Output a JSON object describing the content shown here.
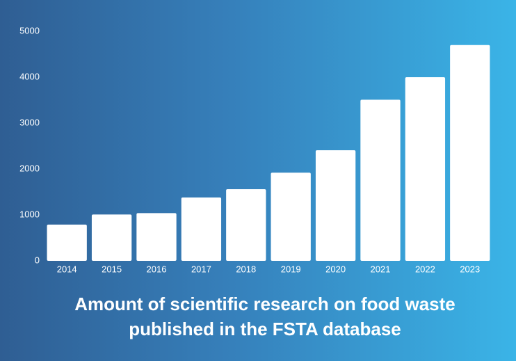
{
  "chart_data": {
    "type": "bar",
    "title": "Amount of scientific research on food waste published in the FSTA database",
    "categories": [
      "2014",
      "2015",
      "2016",
      "2017",
      "2018",
      "2019",
      "2020",
      "2021",
      "2022",
      "2023"
    ],
    "values": [
      790,
      1010,
      1040,
      1380,
      1560,
      1920,
      2410,
      3510,
      4000,
      4700
    ],
    "color": "#ffffff",
    "ylim": [
      0,
      5000
    ],
    "yticks": [
      0,
      1000,
      2000,
      3000,
      4000,
      5000
    ],
    "grid": false
  }
}
